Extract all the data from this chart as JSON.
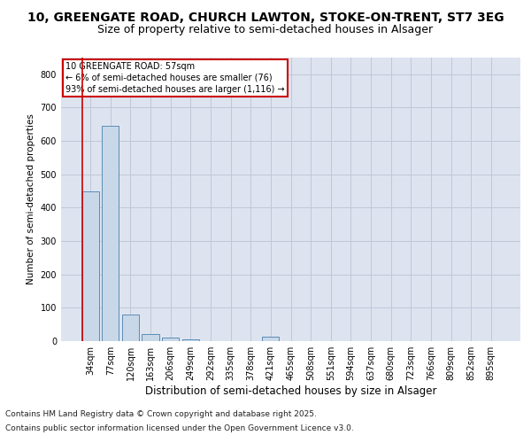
{
  "title_line1": "10, GREENGATE ROAD, CHURCH LAWTON, STOKE-ON-TRENT, ST7 3EG",
  "title_line2": "Size of property relative to semi-detached houses in Alsager",
  "xlabel": "Distribution of semi-detached houses by size in Alsager",
  "ylabel": "Number of semi-detached properties",
  "categories": [
    "34sqm",
    "77sqm",
    "120sqm",
    "163sqm",
    "206sqm",
    "249sqm",
    "292sqm",
    "335sqm",
    "378sqm",
    "421sqm",
    "465sqm",
    "508sqm",
    "551sqm",
    "594sqm",
    "637sqm",
    "680sqm",
    "723sqm",
    "766sqm",
    "809sqm",
    "852sqm",
    "895sqm"
  ],
  "values": [
    450,
    645,
    80,
    20,
    10,
    5,
    0,
    0,
    0,
    12,
    0,
    0,
    0,
    0,
    0,
    0,
    0,
    0,
    0,
    0,
    0
  ],
  "bar_color": "#c8d8e8",
  "bar_edge_color": "#5b8db8",
  "annotation_text": "10 GREENGATE ROAD: 57sqm\n← 6% of semi-detached houses are smaller (76)\n93% of semi-detached houses are larger (1,116) →",
  "annotation_box_color": "#ffffff",
  "annotation_box_edge_color": "#cc0000",
  "vline_x": 0,
  "vline_color": "#cc0000",
  "ylim": [
    0,
    850
  ],
  "yticks": [
    0,
    100,
    200,
    300,
    400,
    500,
    600,
    700,
    800
  ],
  "grid_color": "#c0c8d8",
  "bg_color": "#dde4f0",
  "footer_line1": "Contains HM Land Registry data © Crown copyright and database right 2025.",
  "footer_line2": "Contains public sector information licensed under the Open Government Licence v3.0.",
  "title_fontsize": 10,
  "subtitle_fontsize": 9,
  "tick_fontsize": 7,
  "xlabel_fontsize": 8.5,
  "ylabel_fontsize": 7.5,
  "footer_fontsize": 6.5
}
